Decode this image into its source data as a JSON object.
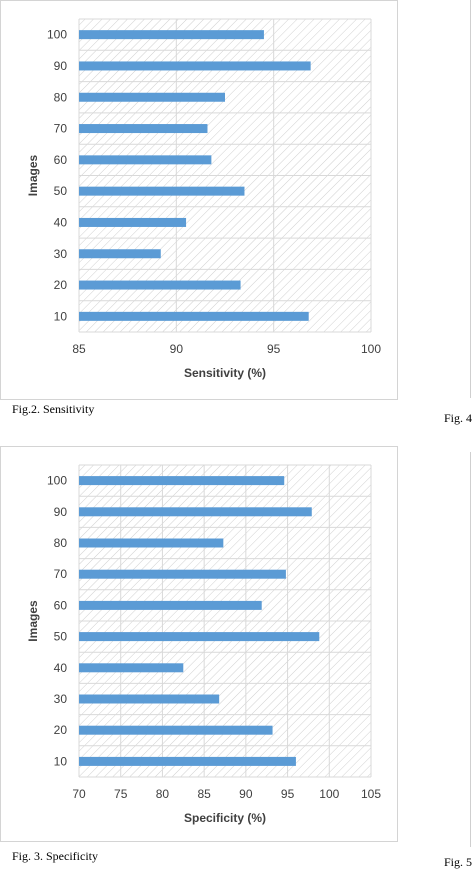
{
  "captions": {
    "fig2": "Fig.2. Sensitivity",
    "fig3": "Fig. 3. Specificity",
    "side_top": "Fig. 4",
    "side_bottom": "Fig. 5"
  },
  "colors": {
    "bar": "#5b9bd5",
    "hatch": "#d0d0d0",
    "grid": "#d9d9d9"
  },
  "chart_data": [
    {
      "type": "bar",
      "orientation": "horizontal",
      "title": "",
      "xlabel": "Sensitivity (%)",
      "ylabel": "Images",
      "categories": [
        "10",
        "20",
        "30",
        "40",
        "50",
        "60",
        "70",
        "80",
        "90",
        "100"
      ],
      "values": [
        96.8,
        93.3,
        89.2,
        90.5,
        93.5,
        91.8,
        91.6,
        92.5,
        96.9,
        94.5
      ],
      "xlim": [
        85,
        100
      ],
      "xticks": [
        "85",
        "90",
        "95",
        "100"
      ],
      "grid": true
    },
    {
      "type": "bar",
      "orientation": "horizontal",
      "title": "",
      "xlabel": "Specificity (%)",
      "ylabel": "Images",
      "categories": [
        "10",
        "20",
        "30",
        "40",
        "50",
        "60",
        "70",
        "80",
        "90",
        "100"
      ],
      "values": [
        96,
        93.2,
        86.8,
        82.5,
        98.8,
        91.9,
        94.8,
        87.3,
        97.9,
        94.6
      ],
      "xlim": [
        70,
        105
      ],
      "xticks": [
        "70",
        "75",
        "80",
        "85",
        "90",
        "95",
        "100",
        "105"
      ],
      "grid": true
    }
  ]
}
